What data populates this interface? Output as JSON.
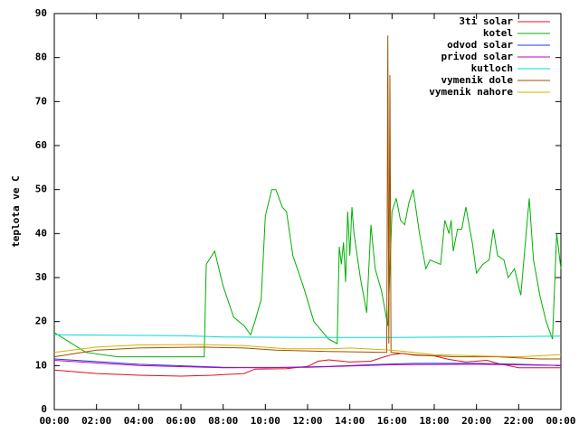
{
  "chart_data": {
    "type": "line",
    "y_label": "teplota ve C",
    "xlim": [
      0,
      24
    ],
    "ylim": [
      0,
      90
    ],
    "xticks": [
      {
        "value": 0,
        "label": "00:00"
      },
      {
        "value": 2,
        "label": "02:00"
      },
      {
        "value": 4,
        "label": "04:00"
      },
      {
        "value": 6,
        "label": "06:00"
      },
      {
        "value": 8,
        "label": "08:00"
      },
      {
        "value": 10,
        "label": "10:00"
      },
      {
        "value": 12,
        "label": "12:00"
      },
      {
        "value": 14,
        "label": "14:00"
      },
      {
        "value": 16,
        "label": "16:00"
      },
      {
        "value": 18,
        "label": "18:00"
      },
      {
        "value": 20,
        "label": "20:00"
      },
      {
        "value": 22,
        "label": "22:00"
      },
      {
        "value": 24,
        "label": "00:00"
      }
    ],
    "yticks": [
      0,
      10,
      20,
      30,
      40,
      50,
      60,
      70,
      80,
      90
    ],
    "legend": "top-right",
    "series": [
      {
        "name": "3ti solar",
        "color": "#e0101a",
        "x": [
          0,
          2,
          4,
          6,
          7.5,
          9,
          9.5,
          11,
          12,
          12.5,
          13,
          14,
          15,
          15.5,
          16,
          16.5,
          17,
          18,
          18.7,
          19.5,
          20.5,
          21,
          22,
          24
        ],
        "values": [
          9,
          8.2,
          7.8,
          7.6,
          7.8,
          8.2,
          9.2,
          9.3,
          9.8,
          11,
          11.3,
          10.8,
          11,
          11.8,
          12.5,
          12.8,
          12.4,
          12.2,
          11.4,
          10.8,
          11.2,
          10.5,
          9.5,
          9.5
        ]
      },
      {
        "name": "kotel",
        "color": "#00b000",
        "x": [
          0,
          1.5,
          3,
          7.1,
          7.2,
          7.6,
          8,
          8.5,
          9,
          9.3,
          9.5,
          9.8,
          10,
          10.3,
          10.5,
          10.8,
          11,
          11.3,
          11.8,
          12.3,
          13,
          13.4,
          13.5,
          13.6,
          13.7,
          13.8,
          13.9,
          14,
          14.1,
          14.2,
          14.5,
          14.8,
          15,
          15.2,
          15.5,
          15.8,
          16,
          16.2,
          16.4,
          16.6,
          16.8,
          17,
          17.3,
          17.6,
          17.8,
          18.3,
          18.5,
          18.7,
          18.8,
          18.9,
          19.1,
          19.3,
          19.5,
          19.8,
          20,
          20.3,
          20.6,
          20.8,
          21,
          21.3,
          21.5,
          21.8,
          22.1,
          22.3,
          22.5,
          22.7,
          23,
          23.3,
          23.6,
          23.8,
          24
        ],
        "values": [
          17.5,
          13,
          12,
          12,
          33,
          36,
          28,
          21,
          19,
          17,
          20,
          25,
          44,
          50,
          50,
          46,
          45,
          35,
          28,
          20,
          16,
          15,
          37,
          33,
          38,
          29,
          45,
          35,
          46,
          40,
          30,
          22,
          42,
          32,
          27,
          19,
          45,
          48,
          43,
          42,
          47,
          50,
          40,
          32,
          34,
          33,
          43,
          40,
          43,
          36,
          41,
          41,
          46,
          38,
          31,
          33,
          34,
          41,
          35,
          34,
          30,
          32,
          26,
          37,
          48,
          34,
          26,
          20,
          16,
          40,
          32
        ]
      },
      {
        "name": "odvod solar",
        "color": "#1a3fd8",
        "x": [
          0,
          4,
          8,
          10,
          13,
          15,
          17,
          20,
          22,
          24
        ],
        "values": [
          11.5,
          10.3,
          9.6,
          9.5,
          9.8,
          10.2,
          10.5,
          10.5,
          10.3,
          10
        ]
      },
      {
        "name": "privod solar",
        "color": "#c000c0",
        "x": [
          0,
          4,
          8,
          12,
          16,
          20,
          24
        ],
        "values": [
          11.2,
          10,
          9.5,
          9.6,
          10.2,
          10.3,
          10
        ]
      },
      {
        "name": "kutloch",
        "color": "#00d8d8",
        "x": [
          0,
          6,
          8,
          12,
          16,
          20,
          24
        ],
        "values": [
          17,
          16.8,
          16.5,
          16.4,
          16.4,
          16.5,
          16.7
        ]
      },
      {
        "name": "vymenik dole",
        "color": "#a05000",
        "x": [
          0,
          2,
          4,
          7,
          9,
          10.5,
          13,
          15.75,
          15.8,
          15.85,
          15.9,
          15.95,
          16,
          17,
          19,
          21,
          23,
          24
        ],
        "values": [
          12,
          13.5,
          14,
          14.2,
          14,
          13.5,
          13.2,
          13,
          85,
          15,
          76,
          13,
          13,
          12.5,
          12,
          12,
          11.5,
          11.5
        ]
      },
      {
        "name": "vymenik nahore",
        "color": "#d8b000",
        "x": [
          0,
          2,
          4,
          7,
          9,
          11,
          13,
          14,
          16,
          17,
          18,
          20,
          22,
          24
        ],
        "values": [
          13,
          14.2,
          14.7,
          14.8,
          14.5,
          13.8,
          13.8,
          14,
          13.5,
          13,
          12.5,
          12.2,
          12,
          12.5
        ]
      }
    ]
  }
}
